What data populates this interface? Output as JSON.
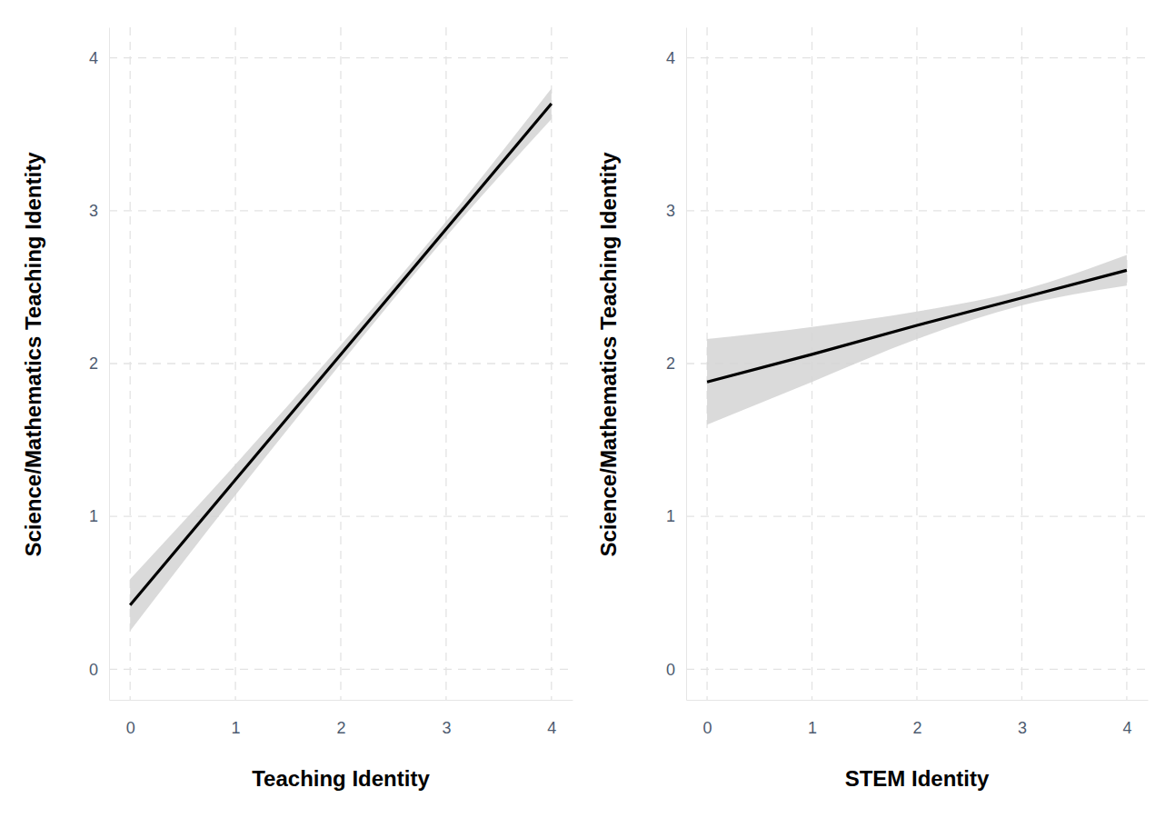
{
  "chart_data": [
    {
      "type": "line",
      "x_label": "Teaching Identity",
      "y_label": "Science/Mathematics Teaching Identity",
      "x": [
        0,
        1,
        2,
        3,
        4
      ],
      "values": [
        0.42,
        1.24,
        2.06,
        2.88,
        3.7
      ],
      "lower": [
        0.25,
        1.14,
        2.0,
        2.83,
        3.6
      ],
      "upper": [
        0.59,
        1.34,
        2.12,
        2.93,
        3.8
      ],
      "color": "#000000",
      "xlim": [
        -0.2,
        4.2
      ],
      "ylim": [
        -0.2,
        4.2
      ],
      "xticks": [
        0,
        1,
        2,
        3,
        4
      ],
      "yticks": [
        0,
        1,
        2,
        3,
        4
      ],
      "grid": true
    },
    {
      "type": "line",
      "x_label": "STEM Identity",
      "y_label": "Science/Mathematics Teaching Identity",
      "x": [
        0,
        1,
        2,
        3,
        4
      ],
      "values": [
        1.88,
        2.06,
        2.25,
        2.43,
        2.61
      ],
      "lower": [
        1.6,
        1.88,
        2.16,
        2.38,
        2.51
      ],
      "upper": [
        2.16,
        2.24,
        2.34,
        2.48,
        2.71
      ],
      "color": "#000000",
      "xlim": [
        -0.2,
        4.2
      ],
      "ylim": [
        -0.2,
        4.2
      ],
      "xticks": [
        0,
        1,
        2,
        3,
        4
      ],
      "yticks": [
        0,
        1,
        2,
        3,
        4
      ],
      "grid": true
    }
  ]
}
